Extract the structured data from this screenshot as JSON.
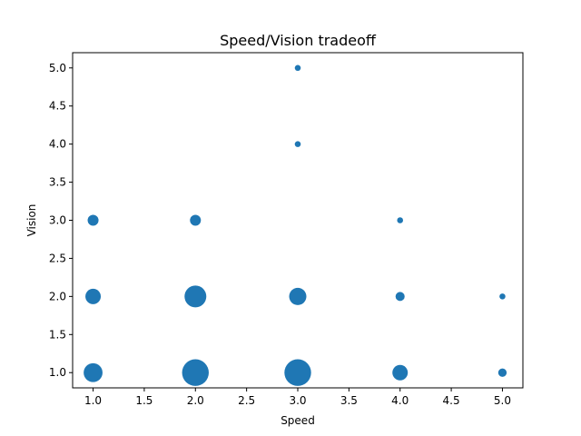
{
  "chart_data": {
    "type": "scatter",
    "title": "Speed/Vision tradeoff",
    "xlabel": "Speed",
    "ylabel": "Vision",
    "xlim": [
      0.8,
      5.2
    ],
    "ylim": [
      0.8,
      5.2
    ],
    "xticks": [
      "1.0",
      "1.5",
      "2.0",
      "2.5",
      "3.0",
      "3.5",
      "4.0",
      "4.5",
      "5.0"
    ],
    "yticks": [
      "1.0",
      "1.5",
      "2.0",
      "2.5",
      "3.0",
      "3.5",
      "4.0",
      "4.5",
      "5.0"
    ],
    "marker_color": "#1f77b4",
    "points": [
      {
        "x": 1,
        "y": 1,
        "size": 3
      },
      {
        "x": 1,
        "y": 2,
        "size": 2
      },
      {
        "x": 1,
        "y": 3,
        "size": 1
      },
      {
        "x": 2,
        "y": 1,
        "size": 6
      },
      {
        "x": 2,
        "y": 2,
        "size": 4
      },
      {
        "x": 2,
        "y": 3,
        "size": 1
      },
      {
        "x": 3,
        "y": 1,
        "size": 6
      },
      {
        "x": 3,
        "y": 2,
        "size": 2.5
      },
      {
        "x": 3,
        "y": 4,
        "size": 0.3
      },
      {
        "x": 3,
        "y": 5,
        "size": 0.3
      },
      {
        "x": 4,
        "y": 1,
        "size": 2
      },
      {
        "x": 4,
        "y": 2,
        "size": 0.7
      },
      {
        "x": 4,
        "y": 3,
        "size": 0.3
      },
      {
        "x": 5,
        "y": 1,
        "size": 0.6
      },
      {
        "x": 5,
        "y": 2,
        "size": 0.3
      }
    ]
  }
}
